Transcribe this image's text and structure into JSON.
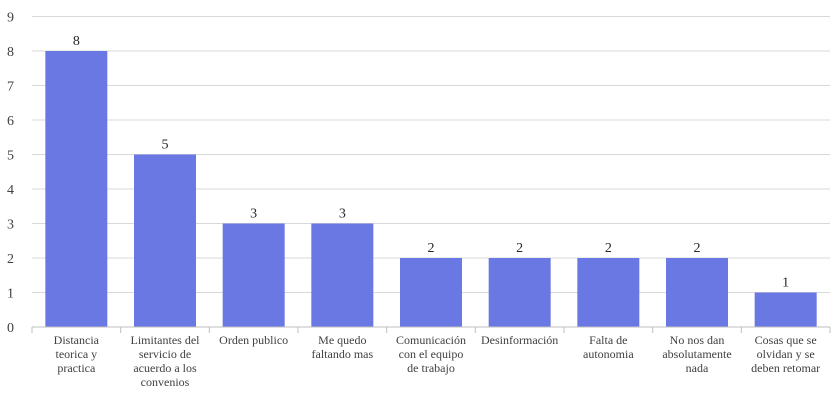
{
  "chart_data": {
    "type": "bar",
    "title": "",
    "xlabel": "",
    "ylabel": "",
    "ylim": [
      0,
      9
    ],
    "yticks": [
      0,
      1,
      2,
      3,
      4,
      5,
      6,
      7,
      8,
      9
    ],
    "grid": true,
    "legend": "none",
    "bar_color": "#6a78e3",
    "categories": [
      [
        "Distancia",
        "teorica y",
        "practica"
      ],
      [
        "Limitantes del",
        "servicio de",
        "acuerdo a los",
        "convenios"
      ],
      [
        "Orden publico"
      ],
      [
        "Me quedo",
        "faltando mas"
      ],
      [
        "Comunicación",
        "con el equipo",
        "de trabajo"
      ],
      [
        "Desinformación"
      ],
      [
        "Falta de",
        "autonomia"
      ],
      [
        "No nos dan",
        "absolutamente",
        "nada"
      ],
      [
        "Cosas que se",
        "olvidan y se",
        "deben retomar"
      ]
    ],
    "values": [
      8,
      5,
      3,
      3,
      2,
      2,
      2,
      2,
      1
    ]
  }
}
